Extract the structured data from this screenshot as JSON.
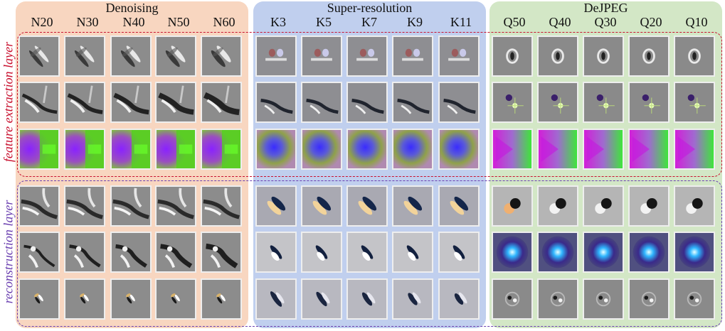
{
  "panels": [
    {
      "title": "Denoising",
      "background": "#f8d6c0",
      "columns": [
        "N20",
        "N30",
        "N40",
        "N50",
        "N60"
      ]
    },
    {
      "title": "Super-resolution",
      "background": "#c0cfee",
      "columns": [
        "K3",
        "K5",
        "K7",
        "K9",
        "K11"
      ]
    },
    {
      "title": "DeJPEG",
      "background": "#d3e7c6",
      "columns": [
        "Q50",
        "Q40",
        "Q30",
        "Q20",
        "Q10"
      ]
    }
  ],
  "row_groups": [
    {
      "label": "feature extraction layer",
      "color": "#c8102e"
    },
    {
      "label": "reconstruction layer",
      "color": "#6a3fb0"
    }
  ]
}
